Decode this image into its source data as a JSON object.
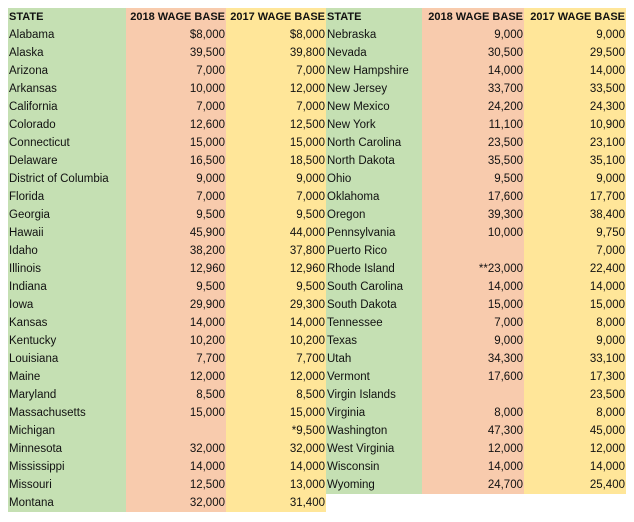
{
  "headers": {
    "state": "STATE",
    "wage2018": "2018 WAGE BASE",
    "wage2017": "2017 WAGE BASE"
  },
  "left_rows": [
    {
      "state": "Alabama",
      "w2018": "$8,000",
      "w2017": "$8,000"
    },
    {
      "state": "Alaska",
      "w2018": "39,500",
      "w2017": "39,800"
    },
    {
      "state": "Arizona",
      "w2018": "7,000",
      "w2017": "7,000"
    },
    {
      "state": "Arkansas",
      "w2018": "10,000",
      "w2017": "12,000"
    },
    {
      "state": "California",
      "w2018": "7,000",
      "w2017": "7,000"
    },
    {
      "state": "Colorado",
      "w2018": "12,600",
      "w2017": "12,500"
    },
    {
      "state": "Connecticut",
      "w2018": "15,000",
      "w2017": "15,000"
    },
    {
      "state": "Delaware",
      "w2018": "16,500",
      "w2017": "18,500"
    },
    {
      "state": "District of Columbia",
      "w2018": "9,000",
      "w2017": "9,000"
    },
    {
      "state": "Florida",
      "w2018": "7,000",
      "w2017": "7,000"
    },
    {
      "state": "Georgia",
      "w2018": "9,500",
      "w2017": "9,500"
    },
    {
      "state": "Hawaii",
      "w2018": "45,900",
      "w2017": "44,000"
    },
    {
      "state": "Idaho",
      "w2018": "38,200",
      "w2017": "37,800"
    },
    {
      "state": "Illinois",
      "w2018": "12,960",
      "w2017": "12,960"
    },
    {
      "state": "Indiana",
      "w2018": "9,500",
      "w2017": "9,500"
    },
    {
      "state": "Iowa",
      "w2018": "29,900",
      "w2017": "29,300"
    },
    {
      "state": "Kansas",
      "w2018": "14,000",
      "w2017": "14,000"
    },
    {
      "state": "Kentucky",
      "w2018": "10,200",
      "w2017": "10,200"
    },
    {
      "state": "Louisiana",
      "w2018": "7,700",
      "w2017": "7,700"
    },
    {
      "state": "Maine",
      "w2018": "12,000",
      "w2017": "12,000"
    },
    {
      "state": "Maryland",
      "w2018": "8,500",
      "w2017": "8,500"
    },
    {
      "state": "Massachusetts",
      "w2018": "15,000",
      "w2017": "15,000"
    },
    {
      "state": "Michigan",
      "w2018": "",
      "w2017": "*9,500"
    },
    {
      "state": "Minnesota",
      "w2018": "32,000",
      "w2017": "32,000"
    },
    {
      "state": "Mississippi",
      "w2018": "14,000",
      "w2017": "14,000"
    },
    {
      "state": "Missouri",
      "w2018": "12,500",
      "w2017": "13,000"
    },
    {
      "state": "Montana",
      "w2018": "32,000",
      "w2017": "31,400"
    }
  ],
  "right_rows": [
    {
      "state": "Nebraska",
      "w2018": "9,000",
      "w2017": "9,000"
    },
    {
      "state": "Nevada",
      "w2018": "30,500",
      "w2017": "29,500"
    },
    {
      "state": "New Hampshire",
      "w2018": "14,000",
      "w2017": "14,000"
    },
    {
      "state": "New Jersey",
      "w2018": "33,700",
      "w2017": "33,500"
    },
    {
      "state": "New Mexico",
      "w2018": "24,200",
      "w2017": "24,300"
    },
    {
      "state": "New York",
      "w2018": "11,100",
      "w2017": "10,900"
    },
    {
      "state": "North Carolina",
      "w2018": "23,500",
      "w2017": "23,100"
    },
    {
      "state": "North Dakota",
      "w2018": "35,500",
      "w2017": "35,100"
    },
    {
      "state": "Ohio",
      "w2018": "9,500",
      "w2017": "9,000"
    },
    {
      "state": "Oklahoma",
      "w2018": "17,600",
      "w2017": "17,700"
    },
    {
      "state": "Oregon",
      "w2018": "39,300",
      "w2017": "38,400"
    },
    {
      "state": "Pennsylvania",
      "w2018": "10,000",
      "w2017": "9,750"
    },
    {
      "state": "Puerto Rico",
      "w2018": "",
      "w2017": "7,000"
    },
    {
      "state": "Rhode Island",
      "w2018": "**23,000",
      "w2017": "22,400"
    },
    {
      "state": "South Carolina",
      "w2018": "14,000",
      "w2017": "14,000"
    },
    {
      "state": "South Dakota",
      "w2018": "15,000",
      "w2017": "15,000"
    },
    {
      "state": "Tennessee",
      "w2018": "7,000",
      "w2017": "8,000"
    },
    {
      "state": "Texas",
      "w2018": "9,000",
      "w2017": "9,000"
    },
    {
      "state": "Utah",
      "w2018": "34,300",
      "w2017": "33,100"
    },
    {
      "state": "Vermont",
      "w2018": "17,600",
      "w2017": "17,300"
    },
    {
      "state": "Virgin Islands",
      "w2018": "",
      "w2017": "23,500"
    },
    {
      "state": "Virginia",
      "w2018": "8,000",
      "w2017": "8,000"
    },
    {
      "state": "Washington",
      "w2018": "47,300",
      "w2017": "45,000"
    },
    {
      "state": "West Virginia",
      "w2018": "12,000",
      "w2017": "12,000"
    },
    {
      "state": "Wisconsin",
      "w2018": "14,000",
      "w2017": "14,000"
    },
    {
      "state": "Wyoming",
      "w2018": "24,700",
      "w2017": "25,400"
    }
  ],
  "colors": {
    "state_bg": "#c5e0b3",
    "wage2018_bg": "#f8cbad",
    "wage2017_bg": "#ffe699"
  }
}
